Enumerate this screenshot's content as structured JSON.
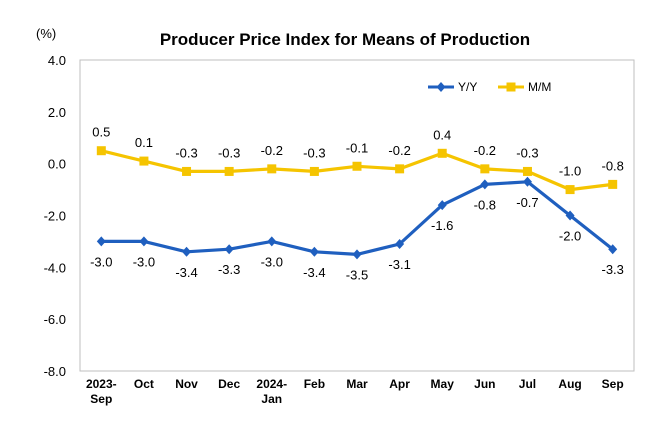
{
  "chart_data": {
    "type": "line",
    "title": "Producer Price Index for Means of Production",
    "unit_label": "(%)",
    "categories": [
      [
        "2023-",
        "Sep"
      ],
      [
        "Oct"
      ],
      [
        "Nov"
      ],
      [
        "Dec"
      ],
      [
        "2024-",
        "Jan"
      ],
      [
        "Feb"
      ],
      [
        "Mar"
      ],
      [
        "Apr"
      ],
      [
        "May"
      ],
      [
        "Jun"
      ],
      [
        "Jul"
      ],
      [
        "Aug"
      ],
      [
        "Sep"
      ]
    ],
    "ylim": [
      -8.0,
      4.0
    ],
    "yticks": [
      "4.0",
      "2.0",
      "0.0",
      "-2.0",
      "-4.0",
      "-6.0",
      "-8.0"
    ],
    "legend_position": "top-right",
    "series": [
      {
        "name": "Y/Y",
        "color": "#1f5fbf",
        "marker": "diamond",
        "label_position": "below",
        "values": [
          -3.0,
          -3.0,
          -3.4,
          -3.3,
          -3.0,
          -3.4,
          -3.5,
          -3.1,
          -1.6,
          -0.8,
          -0.7,
          -2.0,
          -3.3
        ],
        "labels": [
          "-3.0",
          "-3.0",
          "-3.4",
          "-3.3",
          "-3.0",
          "-3.4",
          "-3.5",
          "-3.1",
          "-1.6",
          "-0.8",
          "-0.7",
          "-2.0",
          "-3.3"
        ]
      },
      {
        "name": "M/M",
        "color": "#f5c400",
        "marker": "square",
        "label_position": "above",
        "values": [
          0.5,
          0.1,
          -0.3,
          -0.3,
          -0.2,
          -0.3,
          -0.1,
          -0.2,
          0.4,
          -0.2,
          -0.3,
          -1.0,
          -0.8
        ],
        "labels": [
          "0.5",
          "0.1",
          "-0.3",
          "-0.3",
          "-0.2",
          "-0.3",
          "-0.1",
          "-0.2",
          "0.4",
          "-0.2",
          "-0.3",
          "-1.0",
          "-0.8"
        ]
      }
    ]
  }
}
